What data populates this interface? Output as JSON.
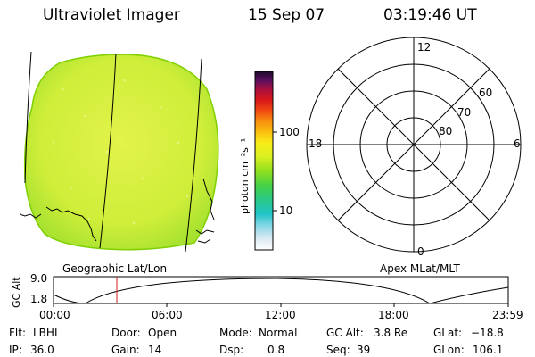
{
  "header": {
    "instrument": "Ultraviolet Imager",
    "date": "15 Sep 07",
    "time": "03:19:46 UT"
  },
  "left_panel": {
    "caption": "Geographic Lat/Lon"
  },
  "colorbar": {
    "unit_label": "photon cm⁻²s⁻¹",
    "ticks": [
      "100",
      "10"
    ]
  },
  "polar_plot": {
    "caption": "Apex MLat/MLT",
    "mlt_labels": [
      "12",
      "18",
      "6",
      "0"
    ],
    "lat_labels": [
      "60",
      "70",
      "80"
    ]
  },
  "altitude_strip": {
    "ylabel": "GC Alt",
    "y_ticks": [
      "9.0",
      "1.8"
    ],
    "x_ticks": [
      "00:00",
      "06:00",
      "12:00",
      "18:00",
      "23:59"
    ],
    "marker_time": "03:19:46"
  },
  "info": {
    "flt_label": "Flt:",
    "flt_value": "LBHL",
    "ip_label": "IP:",
    "ip_value": "36.0",
    "door_label": "Door:",
    "door_value": "Open",
    "gain_label": "Gain:",
    "gain_value": "14",
    "mode_label": "Mode:",
    "mode_value": "Normal",
    "dsp_label": "Dsp:",
    "dsp_value": "0.8",
    "gcalt_label": "GC Alt:",
    "gcalt_value": "3.8 Re",
    "seq_label": "Seq:",
    "seq_value": "39",
    "glat_label": "GLat:",
    "glat_value": "−18.8",
    "glon_label": "GLon:",
    "glon_value": "106.1"
  },
  "colors": {
    "disk": "#c8ee3a",
    "disk_edge": "#8fd400",
    "marker": "#d02020"
  }
}
